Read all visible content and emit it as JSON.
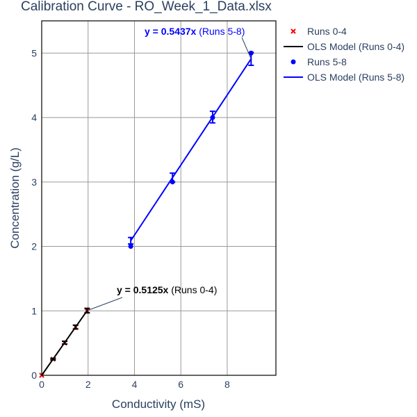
{
  "chart_data": {
    "type": "scatter",
    "title": "Calibration Curve - RO_Week_1_Data.xlsx",
    "xlabel": "Conductivity (mS)",
    "ylabel": "Concentration (g/L)",
    "xlim": [
      0,
      10.1
    ],
    "ylim": [
      0,
      5.5
    ],
    "x_ticks": [
      0,
      2,
      4,
      6,
      8
    ],
    "y_ticks": [
      0,
      1,
      2,
      3,
      4,
      5
    ],
    "grid": true,
    "legend": "top-right",
    "colors": {
      "runs04": "#ff0000",
      "ols04": "#000000",
      "runs58": "#0000ff",
      "ols58": "#0000ff"
    },
    "series": [
      {
        "name": "Runs 0-4",
        "mode": "markers",
        "marker": "x",
        "color": "#ff0000",
        "x": [
          0.0,
          0.49,
          0.99,
          1.46,
          1.96
        ],
        "y": [
          0.0,
          0.25,
          0.5,
          0.75,
          1.0
        ]
      },
      {
        "name": "OLS Model (Runs 0-4)",
        "mode": "line+errorbars",
        "color": "#000000",
        "x": [
          0.0,
          0.49,
          0.99,
          1.46,
          1.96
        ],
        "y": [
          0.0,
          0.251,
          0.507,
          0.748,
          1.004
        ],
        "error": [
          0.0,
          0.012,
          0.022,
          0.03,
          0.035
        ]
      },
      {
        "name": "Runs 5-8",
        "mode": "markers",
        "marker": "circle",
        "color": "#0000ff",
        "x": [
          3.84,
          5.64,
          7.37,
          9.03
        ],
        "y": [
          2.0,
          3.0,
          4.0,
          5.0
        ]
      },
      {
        "name": "OLS Model (Runs 5-8)",
        "mode": "line+errorbars",
        "color": "#0000ff",
        "x": [
          3.84,
          5.64,
          7.37,
          9.03
        ],
        "y": [
          2.088,
          3.067,
          4.007,
          4.91
        ],
        "error": [
          0.05,
          0.07,
          0.09,
          0.1
        ]
      }
    ],
    "annotations": [
      {
        "eq": "y = 0.5125x",
        "label": " (Runs 0-4)",
        "color": "#000000",
        "point": [
          1.96,
          1.004
        ]
      },
      {
        "eq": "y = 0.5437x",
        "label": " (Runs 5-8)",
        "color": "#0000ff",
        "point": [
          9.03,
          4.91
        ]
      }
    ]
  }
}
